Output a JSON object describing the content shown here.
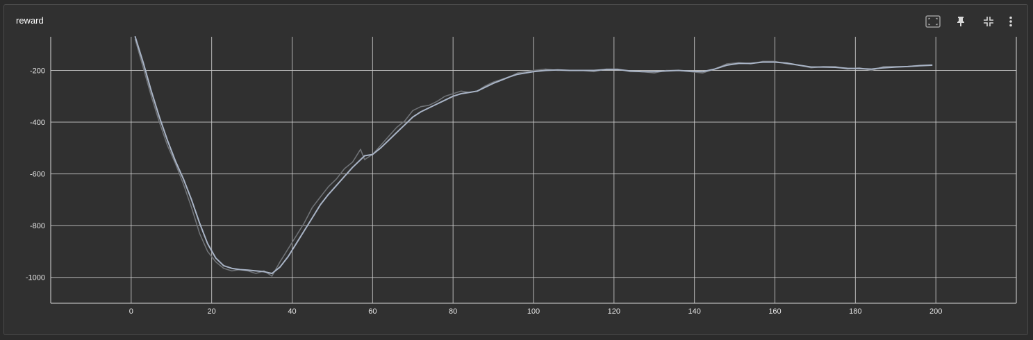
{
  "card": {
    "title": "reward",
    "tools": [
      {
        "name": "fit-domain-icon"
      },
      {
        "name": "pin-icon"
      },
      {
        "name": "collapse-icon"
      },
      {
        "name": "more-vert-icon"
      }
    ]
  },
  "colors": {
    "background": "#303030",
    "grid": "#cfcfcf",
    "axis": "#d8d8d8",
    "raw_line": "#6f7276",
    "smoothed_line": "#a9b4c6",
    "text": "#e6e6e6"
  },
  "chart_data": {
    "type": "line",
    "title": "reward",
    "xlabel": "",
    "ylabel": "",
    "xlim": [
      -20,
      220
    ],
    "ylim": [
      -1100,
      -70
    ],
    "x_ticks": [
      0,
      20,
      40,
      60,
      80,
      100,
      120,
      140,
      160,
      180,
      200
    ],
    "y_ticks": [
      -200,
      -400,
      -600,
      -800,
      -1000
    ],
    "grid": true,
    "series": [
      {
        "role": "raw",
        "x": [
          1,
          3,
          5,
          7,
          9,
          11,
          13,
          15,
          17,
          19,
          21,
          23,
          25,
          27,
          29,
          31,
          33,
          35,
          37,
          39,
          41,
          43,
          45,
          47,
          49,
          51,
          53,
          55,
          57,
          58,
          60,
          62,
          64,
          66,
          68,
          70,
          72,
          74,
          76,
          78,
          80,
          82,
          84,
          86,
          88,
          90,
          92,
          94,
          96,
          98,
          100,
          103,
          106,
          109,
          112,
          115,
          118,
          121,
          124,
          127,
          130,
          133,
          136,
          139,
          142,
          145,
          148,
          151,
          154,
          157,
          160,
          163,
          166,
          169,
          172,
          175,
          178,
          181,
          184,
          187,
          190,
          193,
          196,
          199
        ],
        "y": [
          -80,
          -190,
          -300,
          -400,
          -490,
          -560,
          -640,
          -730,
          -830,
          -900,
          -940,
          -965,
          -975,
          -970,
          -975,
          -985,
          -975,
          -995,
          -940,
          -890,
          -840,
          -790,
          -730,
          -690,
          -650,
          -620,
          -580,
          -555,
          -505,
          -545,
          -525,
          -490,
          -455,
          -420,
          -395,
          -355,
          -340,
          -335,
          -320,
          -300,
          -290,
          -280,
          -285,
          -280,
          -260,
          -245,
          -235,
          -225,
          -210,
          -205,
          -200,
          -195,
          -200,
          -200,
          -200,
          -205,
          -195,
          -195,
          -205,
          -205,
          -210,
          -200,
          -200,
          -205,
          -210,
          -195,
          -175,
          -170,
          -175,
          -165,
          -165,
          -175,
          -180,
          -190,
          -185,
          -185,
          -195,
          -190,
          -200,
          -185,
          -185,
          -185,
          -180,
          -178
        ]
      },
      {
        "role": "smoothed",
        "x": [
          1,
          3,
          5,
          7,
          9,
          11,
          13,
          15,
          17,
          19,
          21,
          23,
          25,
          27,
          29,
          31,
          33,
          35,
          37,
          39,
          41,
          43,
          45,
          47,
          49,
          51,
          53,
          55,
          57,
          58,
          60,
          62,
          64,
          66,
          68,
          70,
          72,
          74,
          76,
          78,
          80,
          82,
          84,
          86,
          88,
          90,
          92,
          94,
          96,
          98,
          100,
          103,
          106,
          109,
          112,
          115,
          118,
          121,
          124,
          127,
          130,
          133,
          136,
          139,
          142,
          145,
          148,
          151,
          154,
          157,
          160,
          163,
          166,
          169,
          172,
          175,
          178,
          181,
          184,
          187,
          190,
          193,
          196,
          199
        ],
        "y": [
          -70,
          -170,
          -280,
          -380,
          -470,
          -550,
          -620,
          -700,
          -790,
          -870,
          -925,
          -955,
          -965,
          -970,
          -972,
          -975,
          -978,
          -985,
          -960,
          -920,
          -870,
          -820,
          -770,
          -720,
          -680,
          -645,
          -610,
          -575,
          -545,
          -530,
          -525,
          -500,
          -470,
          -440,
          -410,
          -380,
          -360,
          -345,
          -330,
          -315,
          -300,
          -290,
          -285,
          -280,
          -265,
          -250,
          -238,
          -225,
          -215,
          -210,
          -205,
          -200,
          -198,
          -200,
          -200,
          -200,
          -197,
          -197,
          -202,
          -205,
          -205,
          -202,
          -200,
          -203,
          -205,
          -195,
          -180,
          -173,
          -173,
          -168,
          -168,
          -172,
          -180,
          -187,
          -187,
          -188,
          -192,
          -193,
          -195,
          -190,
          -187,
          -185,
          -182,
          -180
        ]
      }
    ]
  }
}
